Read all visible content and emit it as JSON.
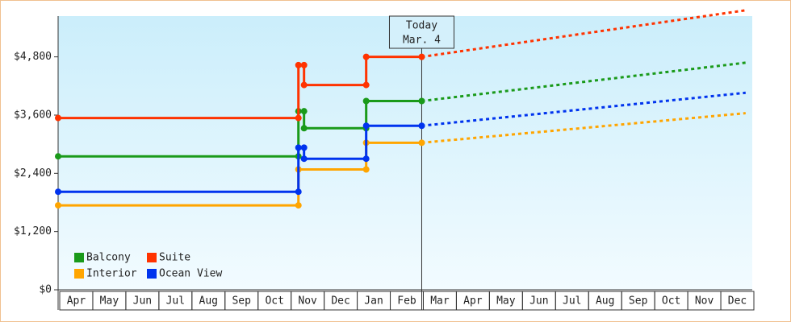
{
  "chart_data": {
    "type": "line",
    "annotation": {
      "title": "Today",
      "date": "Mar. 4",
      "x": 11
    },
    "categories": [
      "Apr",
      "May",
      "Jun",
      "Jul",
      "Aug",
      "Sep",
      "Oct",
      "Nov",
      "Dec",
      "Jan",
      "Feb",
      "Mar",
      "Apr",
      "May",
      "Jun",
      "Jul",
      "Aug",
      "Sep",
      "Oct",
      "Nov",
      "Dec"
    ],
    "xlim": [
      0,
      21
    ],
    "ylim": [
      0,
      5640
    ],
    "yticks": [
      {
        "value": 0,
        "label": "$0"
      },
      {
        "value": 1200,
        "label": "$1,200"
      },
      {
        "value": 2400,
        "label": "$2,400"
      },
      {
        "value": 3600,
        "label": "$3,600"
      },
      {
        "value": 4800,
        "label": "$4,800"
      }
    ],
    "legend": "lower left",
    "series": [
      {
        "name": "Balcony",
        "color": "#1a9a1a",
        "x": [
          0,
          7.27,
          7.27,
          7.44,
          7.44,
          9.32,
          9.32,
          11
        ],
        "values": [
          2750,
          2750,
          3680,
          3680,
          3330,
          3330,
          3890,
          3890
        ],
        "forecast_x": [
          11,
          20.8
        ],
        "forecast_values": [
          3890,
          4680
        ]
      },
      {
        "name": "Suite",
        "color": "#ff3300",
        "x": [
          0,
          7.27,
          7.27,
          7.44,
          7.44,
          9.32,
          9.32,
          11
        ],
        "values": [
          3540,
          3540,
          4630,
          4630,
          4220,
          4220,
          4800,
          4800
        ],
        "forecast_x": [
          11,
          20.8
        ],
        "forecast_values": [
          4800,
          5760
        ]
      },
      {
        "name": "Interior",
        "color": "#ffa500",
        "x": [
          0,
          7.27,
          7.27,
          9.32,
          9.32,
          11
        ],
        "values": [
          1740,
          1740,
          2480,
          2480,
          3030,
          3030
        ],
        "forecast_x": [
          11,
          20.8
        ],
        "forecast_values": [
          3030,
          3640
        ]
      },
      {
        "name": "Ocean View",
        "color": "#0033ee",
        "x": [
          0,
          7.27,
          7.27,
          7.44,
          7.44,
          9.32,
          9.32,
          11
        ],
        "values": [
          2020,
          2020,
          2930,
          2930,
          2700,
          2700,
          3380,
          3380
        ],
        "forecast_x": [
          11,
          20.8
        ],
        "forecast_values": [
          3380,
          4060
        ]
      }
    ]
  }
}
